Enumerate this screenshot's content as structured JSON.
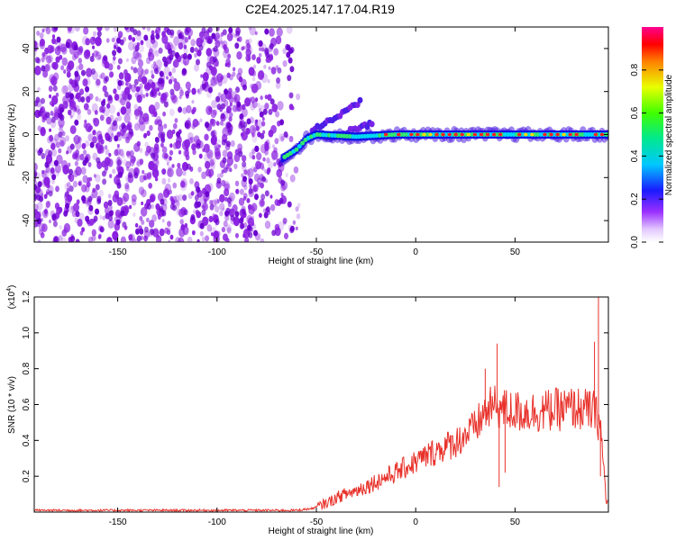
{
  "figure": {
    "title": "C2E4.2025.147.17.04.R19"
  },
  "chart_data": [
    {
      "type": "heatmap",
      "xlabel": "Height of straight line (km)",
      "ylabel": "Frequency (Hz)",
      "xlim": [
        -192,
        97
      ],
      "ylim": [
        -50,
        50
      ],
      "x_ticks": [
        -150,
        -100,
        -50,
        0,
        50
      ],
      "y_ticks": [
        -40,
        -20,
        0,
        20,
        40
      ],
      "colorbar": {
        "label": "Normalized spectral amplitude",
        "range": [
          0,
          1
        ],
        "ticks": [
          "0.0",
          "0.2",
          "0.4",
          "0.6",
          "0.8"
        ],
        "colormap": "white-violet-blue-cyan-green-yellow-red-magenta"
      },
      "noise_region": {
        "x_range": [
          -192,
          -62
        ],
        "dominant_color": "#8a1fe0"
      },
      "signal_track": [
        {
          "x": -67,
          "y": -11
        },
        {
          "x": -60,
          "y": -7
        },
        {
          "x": -55,
          "y": -2
        },
        {
          "x": -50,
          "y": 0
        },
        {
          "x": -30,
          "y": -1
        },
        {
          "x": -10,
          "y": 0
        },
        {
          "x": 0,
          "y": 0
        },
        {
          "x": 30,
          "y": 0
        },
        {
          "x": 60,
          "y": 0
        },
        {
          "x": 97,
          "y": 0
        }
      ],
      "signal_branches": [
        {
          "from_x": -52,
          "to_x": -28,
          "from_y": 2,
          "to_y": 15
        },
        {
          "from_x": -45,
          "to_x": -22,
          "from_y": -2,
          "to_y": 5
        }
      ],
      "peak_amplitude_range": {
        "x_from": -15,
        "x_to": 95,
        "y": 0
      }
    },
    {
      "type": "line",
      "xlabel": "Height of straight line (km)",
      "ylabel": "SNR (10 * v/v)",
      "y_multiplier_label": "(x10",
      "y_multiplier_exp": "4",
      "y_multiplier_close": ")",
      "xlim": [
        -192,
        97
      ],
      "ylim": [
        0,
        1.2
      ],
      "x_ticks": [
        -150,
        -100,
        -50,
        0,
        50
      ],
      "y_ticks": [
        "0.2",
        "0.4",
        "0.6",
        "0.8",
        "1.0",
        "1.2"
      ],
      "color": "#e8322b",
      "series": [
        {
          "x": [
            -192,
            -150,
            -100,
            -70,
            -60,
            -52,
            -45,
            -38,
            -30,
            -20,
            -10,
            0,
            10,
            20,
            30,
            35,
            40,
            45,
            50,
            60,
            70,
            80,
            85,
            90,
            93,
            96
          ],
          "values": [
            0.01,
            0.01,
            0.01,
            0.01,
            0.01,
            0.02,
            0.05,
            0.09,
            0.12,
            0.17,
            0.22,
            0.28,
            0.34,
            0.39,
            0.47,
            0.56,
            0.59,
            0.57,
            0.56,
            0.56,
            0.57,
            0.58,
            0.57,
            0.56,
            0.48,
            0.05
          ]
        }
      ],
      "spikes": [
        {
          "x": 35,
          "y": 0.8
        },
        {
          "x": 41,
          "y": 0.94
        },
        {
          "x": 42,
          "y": 0.14
        },
        {
          "x": 45,
          "y": 0.22
        },
        {
          "x": 90,
          "y": 0.95
        },
        {
          "x": 92,
          "y": 1.2
        },
        {
          "x": 93,
          "y": 0.2
        }
      ]
    }
  ]
}
